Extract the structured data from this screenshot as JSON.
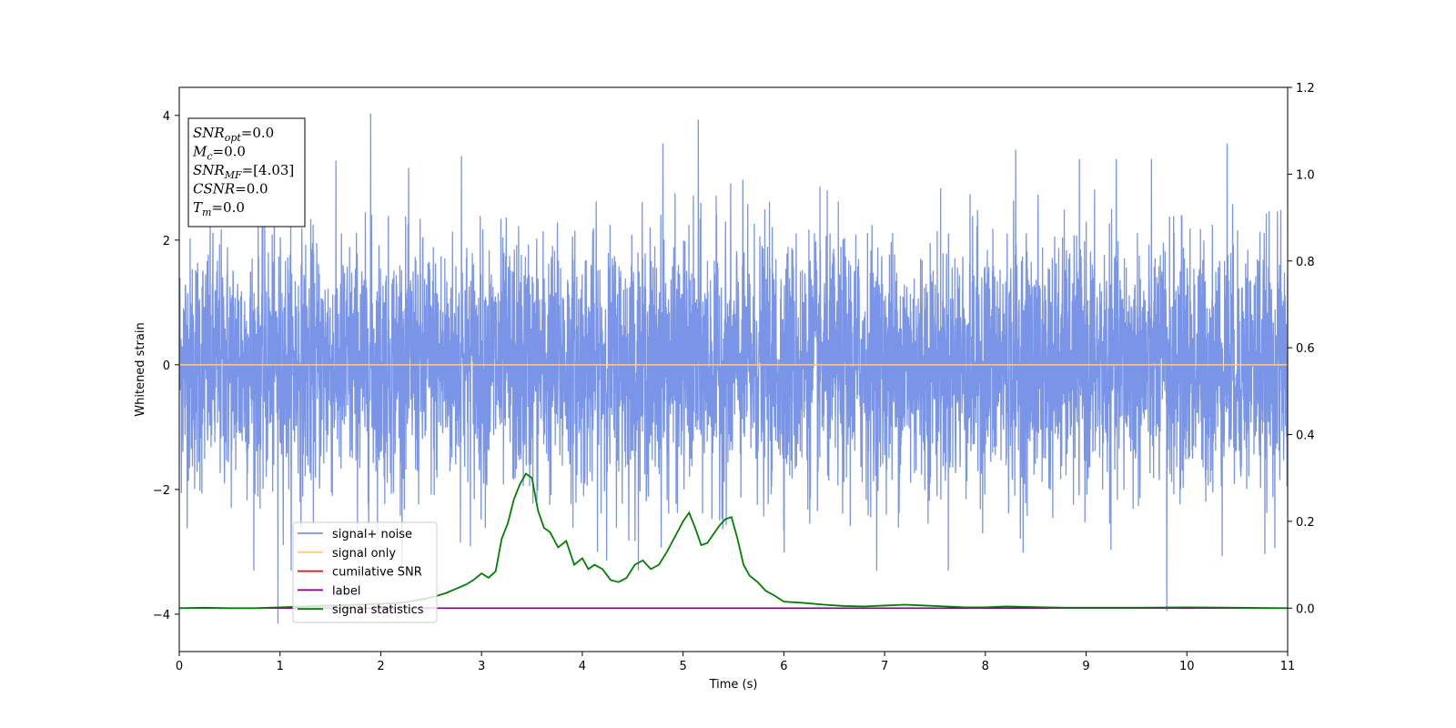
{
  "chart_data": {
    "type": "line",
    "xlabel": "Time (s)",
    "ylabel": "Whitened strain",
    "xlim": [
      0,
      11
    ],
    "ylim": [
      -4.6,
      4.45
    ],
    "y2lim": [
      -0.1,
      1.2
    ],
    "xticks": [
      "0",
      "1",
      "2",
      "3",
      "4",
      "5",
      "6",
      "7",
      "8",
      "9",
      "10",
      "11"
    ],
    "yticks": [
      "−4",
      "−2",
      "0",
      "2",
      "4"
    ],
    "y2ticks": [
      "0.0",
      "0.2",
      "0.4",
      "0.6",
      "0.8",
      "1.0",
      "1.2"
    ],
    "grid": false,
    "legend_position": "lower-left",
    "legend": [
      "signal+ noise",
      "signal only",
      "cumilative SNR",
      "label",
      "signal statistics"
    ],
    "colors": {
      "signal_noise": "#7a95e8",
      "signal_only": "#ffcc80",
      "cumulative_snr": "#ff0000",
      "label": "#800080",
      "signal_statistics": "#008000"
    },
    "series": [
      {
        "name": "signal+ noise",
        "axis": "left",
        "description_kind": "noise",
        "amplitude_std": 1.0,
        "peak_points": [
          {
            "x": 0.98,
            "y": -4.15
          },
          {
            "x": 1.9,
            "y": 4.03
          },
          {
            "x": 5.15,
            "y": 3.93
          },
          {
            "x": 4.8,
            "y": 3.55
          },
          {
            "x": 10.4,
            "y": 3.55
          },
          {
            "x": 9.8,
            "y": -3.95
          },
          {
            "x": 8.3,
            "y": 3.45
          },
          {
            "x": 2.8,
            "y": 3.35
          }
        ]
      },
      {
        "name": "signal only",
        "axis": "left",
        "x": [
          0,
          11
        ],
        "y": [
          0,
          0
        ]
      },
      {
        "name": "cumilative SNR",
        "axis": "right",
        "x": [
          0,
          11
        ],
        "y": [
          0,
          0
        ]
      },
      {
        "name": "label",
        "axis": "right",
        "x": [
          0,
          11
        ],
        "y": [
          0,
          0
        ]
      },
      {
        "name": "signal statistics",
        "axis": "right",
        "x": [
          0.0,
          0.25,
          0.5,
          0.75,
          1.0,
          1.25,
          1.5,
          1.75,
          2.0,
          2.2,
          2.35,
          2.45,
          2.55,
          2.65,
          2.75,
          2.85,
          2.92,
          3.0,
          3.07,
          3.14,
          3.2,
          3.26,
          3.32,
          3.38,
          3.44,
          3.5,
          3.56,
          3.62,
          3.68,
          3.76,
          3.84,
          3.92,
          4.0,
          4.06,
          4.12,
          4.2,
          4.28,
          4.36,
          4.44,
          4.52,
          4.6,
          4.68,
          4.76,
          4.84,
          4.92,
          5.0,
          5.06,
          5.12,
          5.18,
          5.24,
          5.3,
          5.36,
          5.42,
          5.48,
          5.54,
          5.6,
          5.66,
          5.74,
          5.82,
          5.9,
          6.0,
          6.2,
          6.4,
          6.6,
          6.8,
          7.0,
          7.2,
          7.4,
          7.6,
          7.8,
          8.0,
          8.2,
          8.4,
          8.6,
          8.8,
          9.0,
          9.5,
          10.0,
          10.5,
          11.0
        ],
        "y": [
          0.0,
          0.001,
          0.0,
          0.0,
          0.002,
          0.004,
          0.006,
          0.008,
          0.01,
          0.012,
          0.018,
          0.022,
          0.028,
          0.035,
          0.045,
          0.055,
          0.065,
          0.08,
          0.07,
          0.085,
          0.16,
          0.195,
          0.25,
          0.285,
          0.31,
          0.3,
          0.225,
          0.185,
          0.175,
          0.14,
          0.155,
          0.1,
          0.115,
          0.09,
          0.1,
          0.09,
          0.065,
          0.06,
          0.07,
          0.1,
          0.11,
          0.09,
          0.1,
          0.13,
          0.165,
          0.2,
          0.22,
          0.185,
          0.145,
          0.15,
          0.17,
          0.19,
          0.205,
          0.21,
          0.16,
          0.1,
          0.075,
          0.06,
          0.04,
          0.03,
          0.015,
          0.012,
          0.008,
          0.005,
          0.004,
          0.006,
          0.008,
          0.006,
          0.004,
          0.002,
          0.002,
          0.004,
          0.003,
          0.002,
          0.001,
          0.001,
          0.001,
          0.002,
          0.001,
          0.0
        ]
      }
    ],
    "annotation_box": {
      "lines": [
        {
          "name": "SNR",
          "sub": "opt",
          "value": "=0.0"
        },
        {
          "name": "M",
          "sub": "c",
          "value": "=0.0"
        },
        {
          "name": "SNR",
          "sub": "MF",
          "value": "=[4.03]"
        },
        {
          "name": "CSNR",
          "sub": "",
          "value": "=0.0"
        },
        {
          "name": "T",
          "sub": "m",
          "value": "=0.0"
        }
      ]
    }
  }
}
